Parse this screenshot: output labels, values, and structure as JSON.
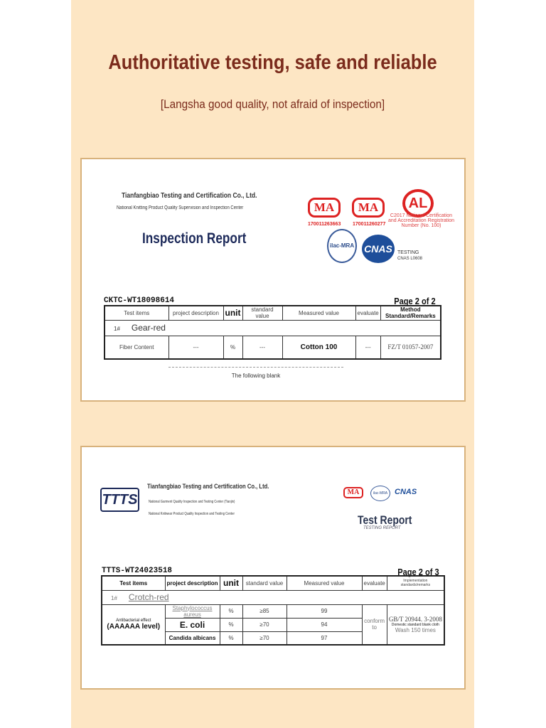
{
  "header": {
    "title": "Authoritative testing, safe and reliable",
    "subtitle": "[Langsha good quality, not afraid of inspection]"
  },
  "report1": {
    "company": "Tianfangbiao Testing and Certification Co., Ltd.",
    "center": "National Knitting Product Quality Supervision and Inspection Center",
    "report_title": "Inspection Report",
    "ma1_number": "170011263663",
    "ma2_number": "170011260277",
    "cal_text": "C2017 National Certification and Accreditation Registration Number (No. 100)",
    "ma_label": "MA",
    "cal_label": "AL",
    "ilac_label": "ilac-MRA",
    "cnas_label": "CNAS",
    "cnas_text": "TESTING",
    "cnas_code": "CNAS L0608",
    "code": "CKTC-WT18098614",
    "page": "Page 2 of 2",
    "columns": [
      "Test items",
      "project description",
      "unit",
      "standard value",
      "Measured value",
      "evaluate",
      "Method Standard/Remarks"
    ],
    "sample_no": "1#",
    "sample_name": "Gear-red",
    "row": [
      "Fiber Content",
      "---",
      "%",
      "---",
      "Cotton 100",
      "---",
      "FZ/T 01057-2007"
    ],
    "footer": "The following blank"
  },
  "report2": {
    "logo": "TTTS",
    "company": "Tianfangbiao Testing and Certification Co., Ltd.",
    "line1": "National Garment Quality Inspection and Testing Center (Tianjin)",
    "line2": "National Knitwear Product Quality Inspection and Testing Center",
    "report_title": "Test Report",
    "report_subtitle": "TESTING REPORT",
    "ma_label": "MA",
    "ilac_label": "ilac-MRA",
    "cnas_label": "CNAS",
    "code": "TTTS-WT24023518",
    "page": "Page 2 of 3",
    "columns": [
      "Test items",
      "project description",
      "unit",
      "standard value",
      "Measured value",
      "evaluate",
      "Implementation standards/remarks"
    ],
    "sample_no": "1#",
    "sample_name": "Crotch-red",
    "item": "Antibacterial effect",
    "item_level": "(AAAAAA level)",
    "rows": [
      {
        "desc": "Staphylococcus aureus",
        "unit": "%",
        "standard": "≥85",
        "measured": "99"
      },
      {
        "desc": "E. coli",
        "unit": "%",
        "standard": "≥70",
        "measured": "94"
      },
      {
        "desc": "Candida albicans",
        "unit": "%",
        "standard": "≥70",
        "measured": "97"
      }
    ],
    "evaluate": "conform to",
    "method": "GB/T 20944. 3-2008",
    "method_note": "Domestic standard blank cloth",
    "method_wash": "Wash 150 times"
  },
  "colors": {
    "background": "#fde6c4",
    "title": "#7b2b1c",
    "card_border": "#d8b27c",
    "stamp_red": "#d22222",
    "navy": "#1d2a5a"
  }
}
